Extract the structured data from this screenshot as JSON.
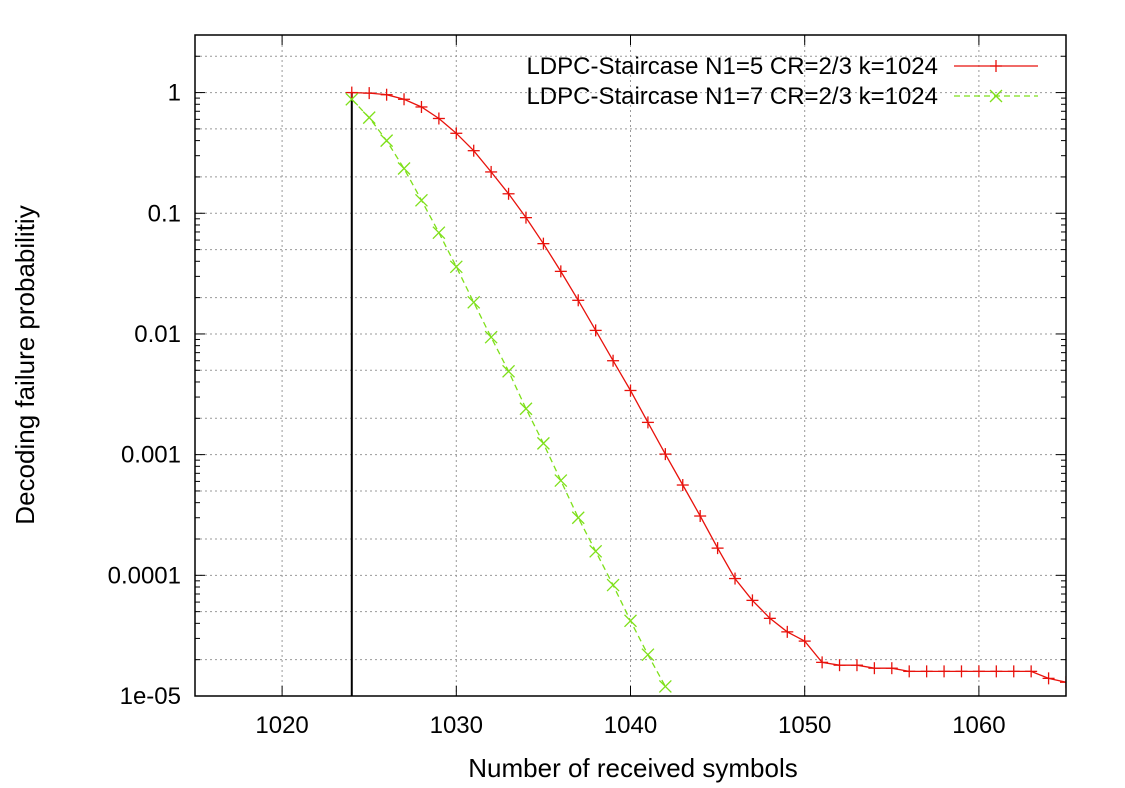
{
  "chart_data": {
    "type": "line",
    "title": "",
    "xlabel": "Number of received symbols",
    "ylabel": "Decoding failure probabilitiy",
    "xlim": [
      1015,
      1065
    ],
    "ylim": [
      1e-05,
      3
    ],
    "yscale": "log",
    "grid": true,
    "legend_position": "top-right",
    "xticks": [
      1020,
      1030,
      1040,
      1050,
      1060
    ],
    "xtick_labels": [
      "1020",
      "1030",
      "1040",
      "1050",
      "1060"
    ],
    "yticks": [
      1e-05,
      0.0001,
      0.001,
      0.01,
      0.1,
      1
    ],
    "ytick_labels": [
      "1e-05",
      "0.0001",
      "0.001",
      "0.01",
      "0.1",
      "1"
    ],
    "series": [
      {
        "name": "LDPC-Staircase N1=5 CR=2/3 k=1024",
        "color": "#e8120c",
        "marker": "plus",
        "dash": "solid",
        "x": [
          1024,
          1025,
          1026,
          1027,
          1028,
          1029,
          1030,
          1031,
          1032,
          1033,
          1034,
          1035,
          1036,
          1037,
          1038,
          1039,
          1040,
          1041,
          1042,
          1043,
          1044,
          1045,
          1046,
          1047,
          1048,
          1049,
          1050,
          1051,
          1052,
          1053,
          1054,
          1055,
          1056,
          1057,
          1058,
          1059,
          1060,
          1061,
          1062,
          1063,
          1064,
          1065
        ],
        "y": [
          1,
          0.99,
          0.96,
          0.88,
          0.76,
          0.61,
          0.46,
          0.33,
          0.22,
          0.145,
          0.092,
          0.056,
          0.033,
          0.019,
          0.0107,
          0.006,
          0.0034,
          0.00185,
          0.00101,
          0.00056,
          0.00031,
          0.000168,
          9.4e-05,
          6.2e-05,
          4.4e-05,
          3.4e-05,
          2.85e-05,
          1.9e-05,
          1.8e-05,
          1.8e-05,
          1.7e-05,
          1.7e-05,
          1.6e-05,
          1.6e-05,
          1.6e-05,
          1.6e-05,
          1.6e-05,
          1.6e-05,
          1.6e-05,
          1.6e-05,
          1.4e-05,
          1.3e-05
        ]
      },
      {
        "name": "LDPC-Staircase N1=7 CR=2/3 k=1024",
        "color": "#7ee01a",
        "marker": "cross",
        "dash": "dashed",
        "x": [
          1024,
          1025,
          1026,
          1027,
          1028,
          1029,
          1030,
          1031,
          1032,
          1033,
          1034,
          1035,
          1036,
          1037,
          1038,
          1039,
          1040,
          1041,
          1042
        ],
        "y": [
          0.88,
          0.62,
          0.4,
          0.235,
          0.128,
          0.069,
          0.036,
          0.0183,
          0.0094,
          0.0049,
          0.0024,
          0.00124,
          0.00061,
          0.0003,
          0.000158,
          8.3e-05,
          4.2e-05,
          2.2e-05,
          1.2e-05
        ]
      }
    ],
    "annotations": [
      {
        "type": "vline",
        "x": 1024,
        "color": "#000000"
      }
    ]
  }
}
